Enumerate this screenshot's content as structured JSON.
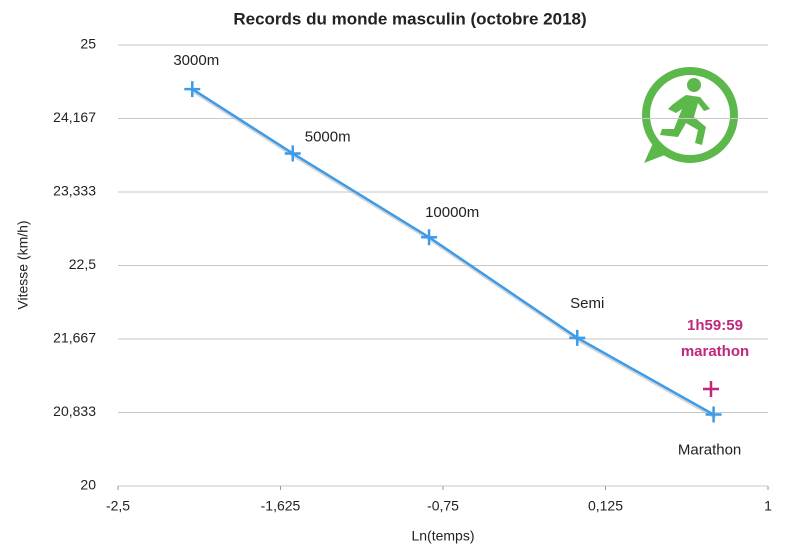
{
  "chart_data": {
    "type": "line",
    "title": "Records du monde masculin (octobre 2018)",
    "xlabel": "Ln(temps)",
    "ylabel": "Vitesse (km/h)",
    "x": [
      -2.1,
      -1.559,
      -0.825,
      -0.027,
      0.707
    ],
    "series": [
      {
        "color": "#3d9be9",
        "values": [
          24.5,
          23.77,
          22.82,
          21.68,
          20.81
        ],
        "labels": [
          "3000m",
          "5000m",
          "10000m",
          "Semi",
          "Marathon"
        ]
      }
    ],
    "annotation": {
      "x": 0.693,
      "y": 21.1,
      "color": "#c0267a",
      "text": [
        "1h59:59",
        "marathon"
      ]
    },
    "xlim": [
      -2.5,
      1
    ],
    "xticks": [
      {
        "value": -2.5,
        "label": "-2,5"
      },
      {
        "value": -1.625,
        "label": "-1,625"
      },
      {
        "value": -0.75,
        "label": "-0,75"
      },
      {
        "value": 0.125,
        "label": "0,125"
      },
      1
    ],
    "ylim": [
      20,
      25
    ],
    "yticks": [
      20,
      {
        "value": 20.833,
        "label": "20,833"
      },
      {
        "value": 21.667,
        "label": "21,667"
      },
      {
        "value": 22.5,
        "label": "22,5"
      },
      {
        "value": 23.333,
        "label": "23,333"
      },
      {
        "value": 24.167,
        "label": "24,167"
      },
      25
    ],
    "grid": true
  }
}
